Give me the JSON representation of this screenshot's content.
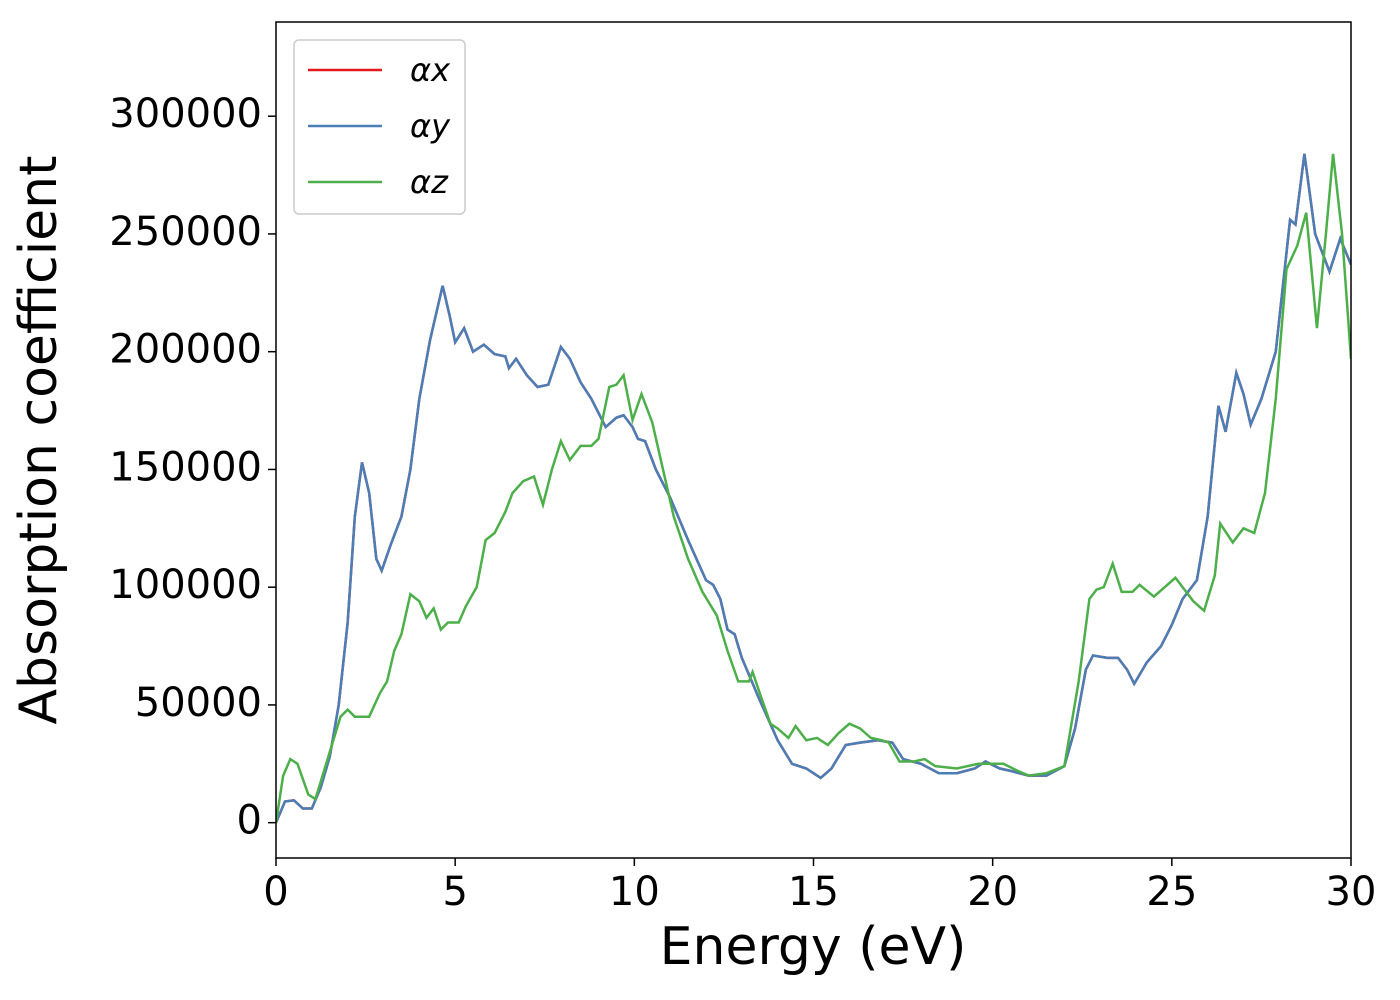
{
  "chart_data": {
    "type": "line",
    "xlabel": "Energy (eV)",
    "ylabel": "Absorption coefficient",
    "xlim": [
      0,
      30
    ],
    "ylim": [
      -15000,
      340000
    ],
    "xticks": [
      0,
      5,
      10,
      15,
      20,
      25,
      30
    ],
    "yticks": [
      0,
      50000,
      100000,
      150000,
      200000,
      250000,
      300000
    ],
    "legend": "upper left",
    "series": [
      {
        "name": "αx",
        "color": "#e41a1c",
        "x": [
          0,
          0.25,
          0.5,
          0.75,
          1.0,
          1.25,
          1.5,
          1.75,
          2.0,
          2.2,
          2.4,
          2.6,
          2.8,
          2.95,
          3.2,
          3.5,
          3.75,
          4.0,
          4.3,
          4.65,
          4.85,
          5.0,
          5.25,
          5.5,
          5.8,
          6.1,
          6.4,
          6.5,
          6.7,
          7.0,
          7.3,
          7.6,
          7.95,
          8.2,
          8.5,
          8.8,
          9.2,
          9.5,
          9.7,
          9.95,
          10.1,
          10.3,
          10.6,
          11,
          11.5,
          12,
          12.2,
          12.4,
          12.6,
          12.8,
          13,
          13.5,
          14,
          14.4,
          14.8,
          15.2,
          15.5,
          15.9,
          16.3,
          16.8,
          17.2,
          17.5,
          18,
          18.5,
          19,
          19.5,
          19.8,
          20.2,
          20.5,
          21,
          21.5,
          22,
          22.3,
          22.6,
          22.8,
          23.2,
          23.5,
          23.75,
          23.95,
          24.3,
          24.7,
          25,
          25.3,
          25.7,
          26,
          26.3,
          26.5,
          26.8,
          27.0,
          27.2,
          27.5,
          27.9,
          28.3,
          28.45,
          28.7,
          29.0,
          29.4,
          29.7,
          30
        ],
        "values": [
          0,
          9000,
          9500,
          6000,
          6000,
          15000,
          28000,
          50000,
          85000,
          130000,
          153000,
          140000,
          112000,
          107000,
          118000,
          130000,
          150000,
          180000,
          205000,
          228000,
          215000,
          204000,
          210000,
          200000,
          203000,
          199000,
          198000,
          193000,
          197000,
          190000,
          185000,
          186000,
          202000,
          197000,
          187000,
          180000,
          168000,
          172000,
          173000,
          168000,
          163000,
          162000,
          150000,
          138000,
          120000,
          103000,
          101000,
          95000,
          82000,
          80000,
          70000,
          52000,
          35000,
          25000,
          23000,
          19000,
          23000,
          33000,
          34000,
          35000,
          34000,
          27000,
          25000,
          21000,
          21000,
          23000,
          26000,
          23000,
          22000,
          20000,
          20000,
          24000,
          40000,
          65000,
          71000,
          70000,
          70000,
          65000,
          59000,
          68000,
          75000,
          84000,
          95000,
          103000,
          130000,
          177000,
          166000,
          191000,
          182000,
          169000,
          180000,
          200000,
          256000,
          254000,
          284000,
          250000,
          234000,
          248000,
          237000
        ]
      },
      {
        "name": "αy",
        "color": "#4a7eb6",
        "x": [
          0,
          0.25,
          0.5,
          0.75,
          1.0,
          1.25,
          1.5,
          1.75,
          2.0,
          2.2,
          2.4,
          2.6,
          2.8,
          2.95,
          3.2,
          3.5,
          3.75,
          4.0,
          4.3,
          4.65,
          4.85,
          5.0,
          5.25,
          5.5,
          5.8,
          6.1,
          6.4,
          6.5,
          6.7,
          7.0,
          7.3,
          7.6,
          7.95,
          8.2,
          8.5,
          8.8,
          9.2,
          9.5,
          9.7,
          9.95,
          10.1,
          10.3,
          10.6,
          11,
          11.5,
          12,
          12.2,
          12.4,
          12.6,
          12.8,
          13,
          13.5,
          14,
          14.4,
          14.8,
          15.2,
          15.5,
          15.9,
          16.3,
          16.8,
          17.2,
          17.5,
          18,
          18.5,
          19,
          19.5,
          19.8,
          20.2,
          20.5,
          21,
          21.5,
          22,
          22.3,
          22.6,
          22.8,
          23.2,
          23.5,
          23.75,
          23.95,
          24.3,
          24.7,
          25,
          25.3,
          25.7,
          26,
          26.3,
          26.5,
          26.8,
          27.0,
          27.2,
          27.5,
          27.9,
          28.3,
          28.45,
          28.7,
          29.0,
          29.4,
          29.7,
          30
        ],
        "values": [
          0,
          9000,
          9500,
          6000,
          6000,
          15000,
          28000,
          50000,
          85000,
          130000,
          153000,
          140000,
          112000,
          107000,
          118000,
          130000,
          150000,
          180000,
          205000,
          228000,
          215000,
          204000,
          210000,
          200000,
          203000,
          199000,
          198000,
          193000,
          197000,
          190000,
          185000,
          186000,
          202000,
          197000,
          187000,
          180000,
          168000,
          172000,
          173000,
          168000,
          163000,
          162000,
          150000,
          138000,
          120000,
          103000,
          101000,
          95000,
          82000,
          80000,
          70000,
          52000,
          35000,
          25000,
          23000,
          19000,
          23000,
          33000,
          34000,
          35000,
          34000,
          27000,
          25000,
          21000,
          21000,
          23000,
          26000,
          23000,
          22000,
          20000,
          20000,
          24000,
          40000,
          65000,
          71000,
          70000,
          70000,
          65000,
          59000,
          68000,
          75000,
          84000,
          95000,
          103000,
          130000,
          177000,
          166000,
          191000,
          182000,
          169000,
          180000,
          200000,
          256000,
          254000,
          284000,
          250000,
          234000,
          248000,
          237000
        ]
      },
      {
        "name": "αz",
        "color": "#4daf4a",
        "x": [
          0,
          0.2,
          0.4,
          0.6,
          0.9,
          1.1,
          1.4,
          1.6,
          1.8,
          2.0,
          2.2,
          2.6,
          2.9,
          3.1,
          3.3,
          3.5,
          3.75,
          4.0,
          4.2,
          4.4,
          4.6,
          4.8,
          5.1,
          5.3,
          5.6,
          5.85,
          6.1,
          6.4,
          6.6,
          6.9,
          7.2,
          7.45,
          7.7,
          7.95,
          8.2,
          8.5,
          8.8,
          9.0,
          9.3,
          9.5,
          9.7,
          9.95,
          10.2,
          10.5,
          10.8,
          11.1,
          11.5,
          11.9,
          12.3,
          12.6,
          12.9,
          13.2,
          13.3,
          13.5,
          13.8,
          14.0,
          14.3,
          14.5,
          14.8,
          15.1,
          15.4,
          15.7,
          16.0,
          16.3,
          16.6,
          16.9,
          17.1,
          17.4,
          17.8,
          18.1,
          18.4,
          19,
          19.6,
          19.9,
          20.3,
          20.7,
          21,
          21.5,
          22,
          22.4,
          22.7,
          22.9,
          23.1,
          23.35,
          23.6,
          23.9,
          24.1,
          24.5,
          24.8,
          25.1,
          25.3,
          25.6,
          25.9,
          26.2,
          26.35,
          26.7,
          27.0,
          27.3,
          27.6,
          27.9,
          28.2,
          28.5,
          28.75,
          29.05,
          29.3,
          29.5,
          29.75,
          30
        ],
        "values": [
          0,
          20000,
          27000,
          25000,
          12000,
          10000,
          25000,
          35000,
          45000,
          48000,
          45000,
          45000,
          55000,
          60000,
          73000,
          80000,
          97000,
          94000,
          87000,
          91000,
          82000,
          85000,
          85000,
          92000,
          100000,
          120000,
          123000,
          132000,
          140000,
          145000,
          147000,
          135000,
          150000,
          162000,
          154000,
          160000,
          160000,
          163000,
          185000,
          186000,
          190000,
          171000,
          182000,
          170000,
          150000,
          130000,
          112000,
          98000,
          88000,
          73000,
          60000,
          60000,
          64000,
          55000,
          42000,
          40000,
          36000,
          41000,
          35000,
          36000,
          33000,
          38000,
          42000,
          40000,
          36000,
          35000,
          34000,
          26000,
          26000,
          27000,
          24000,
          23000,
          25000,
          25000,
          25000,
          22000,
          20000,
          21000,
          24000,
          60000,
          95000,
          99000,
          100000,
          110000,
          98000,
          98000,
          101000,
          96000,
          100000,
          104000,
          100000,
          94000,
          90000,
          105000,
          127000,
          119000,
          125000,
          123000,
          140000,
          180000,
          235000,
          245000,
          259000,
          210000,
          250000,
          284000,
          250000,
          197000
        ]
      }
    ]
  }
}
